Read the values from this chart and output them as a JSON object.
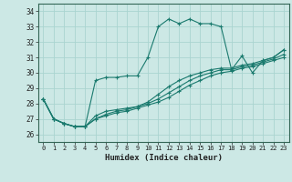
{
  "title": "",
  "xlabel": "Humidex (Indice chaleur)",
  "bg_color": "#cce8e5",
  "grid_color": "#aad4d0",
  "line_color": "#1a7a6e",
  "ylim": [
    25.5,
    34.5
  ],
  "xlim": [
    -0.5,
    23.5
  ],
  "yticks": [
    26,
    27,
    28,
    29,
    30,
    31,
    32,
    33,
    34
  ],
  "xticks": [
    0,
    1,
    2,
    3,
    4,
    5,
    6,
    7,
    8,
    9,
    10,
    11,
    12,
    13,
    14,
    15,
    16,
    17,
    18,
    19,
    20,
    21,
    22,
    23
  ],
  "series": [
    [
      28.3,
      27.0,
      26.7,
      26.5,
      26.5,
      29.5,
      29.7,
      29.7,
      29.8,
      29.8,
      31.0,
      33.0,
      33.5,
      33.2,
      33.5,
      33.2,
      33.2,
      33.0,
      30.2,
      31.1,
      30.0,
      30.8,
      31.0,
      31.5
    ],
    [
      28.3,
      27.0,
      26.7,
      26.5,
      26.5,
      27.2,
      27.5,
      27.6,
      27.7,
      27.8,
      28.1,
      28.6,
      29.1,
      29.5,
      29.8,
      30.0,
      30.2,
      30.3,
      30.3,
      30.5,
      30.6,
      30.8,
      31.0,
      31.5
    ],
    [
      28.3,
      27.0,
      26.7,
      26.5,
      26.5,
      27.0,
      27.3,
      27.5,
      27.6,
      27.8,
      28.0,
      28.3,
      28.7,
      29.1,
      29.5,
      29.8,
      30.0,
      30.2,
      30.2,
      30.4,
      30.5,
      30.7,
      30.9,
      31.2
    ],
    [
      28.3,
      27.0,
      26.7,
      26.5,
      26.5,
      27.0,
      27.2,
      27.4,
      27.5,
      27.7,
      27.9,
      28.1,
      28.4,
      28.8,
      29.2,
      29.5,
      29.8,
      30.0,
      30.1,
      30.3,
      30.4,
      30.6,
      30.8,
      31.0
    ]
  ]
}
